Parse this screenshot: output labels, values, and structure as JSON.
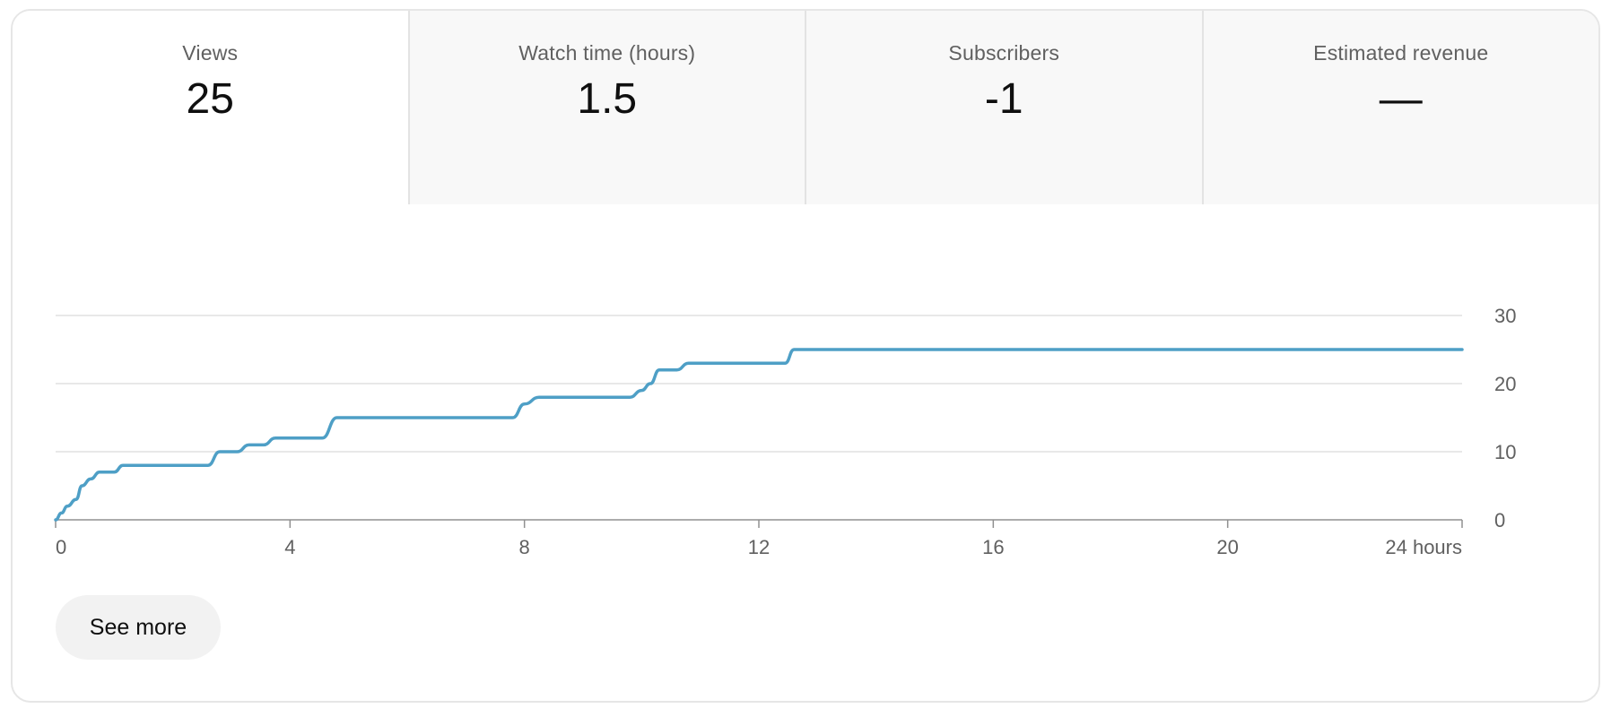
{
  "metrics": [
    {
      "label": "Views",
      "value": "25",
      "selected": true
    },
    {
      "label": "Watch time (hours)",
      "value": "1.5",
      "selected": false
    },
    {
      "label": "Subscribers",
      "value": "-1",
      "selected": false
    },
    {
      "label": "Estimated revenue",
      "value": "—",
      "selected": false
    }
  ],
  "see_more_label": "See more",
  "chart_data": {
    "type": "line",
    "title": "",
    "xlabel": "",
    "ylabel": "",
    "xlim": [
      0,
      24
    ],
    "ylim": [
      0,
      30
    ],
    "x_ticks": [
      0,
      4,
      8,
      12,
      16,
      20,
      24
    ],
    "x_tick_labels": [
      "0",
      "4",
      "8",
      "12",
      "16",
      "20",
      "24 hours"
    ],
    "y_ticks": [
      0,
      10,
      20,
      30
    ],
    "y_tick_labels": [
      "0",
      "10",
      "20",
      "30"
    ],
    "y_axis_side": "right",
    "grid": true,
    "line_color": "#4e9fc6",
    "series": [
      {
        "x": [
          0,
          0.1,
          0.2,
          0.35,
          0.45,
          0.6,
          0.75,
          1.0,
          1.15,
          2.6,
          2.8,
          3.1,
          3.3,
          3.55,
          3.75,
          4.55,
          4.8,
          7.8,
          8.0,
          8.25,
          9.8,
          10.0,
          10.15,
          10.3,
          10.6,
          10.8,
          12.45,
          12.6,
          24
        ],
        "y": [
          0,
          1,
          2,
          3,
          5,
          6,
          7,
          7,
          8,
          8,
          10,
          10,
          11,
          11,
          12,
          12,
          15,
          15,
          17,
          18,
          18,
          19,
          20,
          22,
          22,
          23,
          23,
          25,
          25
        ]
      }
    ]
  }
}
